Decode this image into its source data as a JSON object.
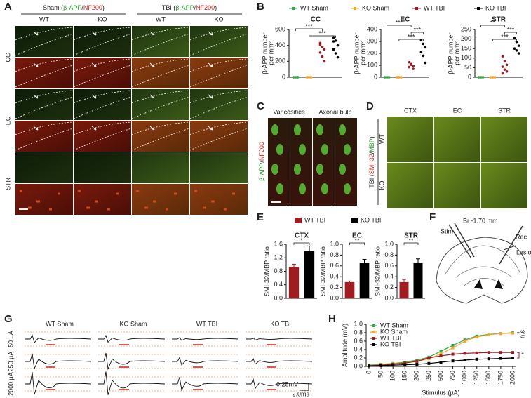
{
  "panel_labels": [
    "A",
    "B",
    "C",
    "D",
    "E",
    "F",
    "G",
    "H"
  ],
  "panel_a": {
    "groups": [
      {
        "parts": [
          "Sham (",
          "β-APP",
          "/",
          "NF200",
          ")"
        ]
      },
      {
        "parts": [
          "TBI (",
          "β-APP",
          "/",
          "NF200",
          ")"
        ]
      }
    ],
    "columns": [
      "WT",
      "KO",
      "WT",
      "KO"
    ],
    "rows": [
      "CC",
      "EC",
      "STR"
    ]
  },
  "panel_c": {
    "columns": [
      "Varicosities",
      "Axonal bulb"
    ],
    "stain_parts": [
      "β-APP",
      "/",
      "NF200"
    ]
  },
  "panel_d": {
    "columns": [
      "CTX",
      "EC",
      "STR"
    ],
    "rows": [
      "WT",
      "KO"
    ],
    "group_parts": [
      "TBI (",
      "SMI-32",
      "/",
      "MBP",
      ")"
    ]
  },
  "panel_f": {
    "labels": [
      "Stim",
      "Br -1.70 mm",
      "Rec",
      "Lesion"
    ]
  },
  "panel_g": {
    "columns": [
      "WT Sham",
      "KO Sham",
      "WT TBI",
      "KO TBI"
    ],
    "rows": [
      "50 µA",
      "250 µA",
      "2000 µA"
    ],
    "scale": [
      "0.25mV",
      "2.0ms"
    ]
  },
  "chart_data": [
    {
      "type": "strip",
      "title": "CC",
      "y_label": [
        "β-APP number",
        "per mm²"
      ],
      "ylim": [
        0,
        600
      ],
      "yticks": [
        0,
        200,
        400,
        600
      ],
      "series": [
        {
          "name": "WT Sham",
          "color": "#3aa64a",
          "values": [
            0,
            0,
            0,
            0,
            0,
            0
          ]
        },
        {
          "name": "KO Sham",
          "color": "#f0a830",
          "values": [
            0,
            0,
            0,
            0,
            0,
            0
          ]
        },
        {
          "name": "WT TBI",
          "color": "#a01c20",
          "values": [
            410,
            380,
            350,
            310,
            260,
            200,
            430
          ]
        },
        {
          "name": "KO TBI",
          "color": "#000000",
          "values": [
            500,
            460,
            400,
            350,
            300,
            250,
            450
          ]
        }
      ],
      "annotations": [
        "***",
        "***"
      ]
    },
    {
      "type": "strip",
      "title": "EC",
      "y_label": [
        "β-APP number",
        "per mm²"
      ],
      "ylim": [
        0,
        400
      ],
      "yticks": [
        0,
        100,
        200,
        300,
        400
      ],
      "series": [
        {
          "color": "#3aa64a",
          "values": [
            0,
            0,
            0,
            0,
            0,
            0
          ]
        },
        {
          "color": "#f0a830",
          "values": [
            0,
            0,
            0,
            0,
            0,
            0
          ]
        },
        {
          "color": "#a01c20",
          "values": [
            125,
            105,
            95,
            85,
            110,
            70
          ]
        },
        {
          "color": "#000000",
          "values": [
            310,
            280,
            250,
            210,
            180,
            120
          ]
        }
      ],
      "annotations": [
        "***",
        "***",
        "***"
      ]
    },
    {
      "type": "strip",
      "title": "STR",
      "y_label": [
        "β-APP number",
        "per mm²"
      ],
      "ylim": [
        0,
        250
      ],
      "yticks": [
        0,
        50,
        100,
        150,
        200,
        250
      ],
      "series": [
        {
          "color": "#3aa64a",
          "values": [
            0,
            0,
            0,
            0,
            0,
            0
          ]
        },
        {
          "color": "#f0a830",
          "values": [
            0,
            0,
            0,
            0,
            0,
            0
          ]
        },
        {
          "color": "#a01c20",
          "values": [
            110,
            85,
            65,
            55,
            40,
            30,
            20
          ]
        },
        {
          "color": "#000000",
          "values": [
            205,
            185,
            165,
            150,
            140,
            125
          ]
        }
      ],
      "annotations": [
        "**",
        "***",
        "***"
      ]
    },
    {
      "type": "bar",
      "title": "CTX",
      "y_label": "SMI-32/MBP ratio",
      "ylim": [
        0,
        1.6
      ],
      "yticks": [
        {
          "value": 0,
          "label": "0.0"
        },
        0.4,
        0.8,
        1.2,
        1.6
      ],
      "series": [
        {
          "name": "WT TBI",
          "color": "#a01c20",
          "values": [
            0.93
          ],
          "errors": [
            0.08
          ]
        },
        {
          "name": "KO TBI",
          "color": "#000000",
          "values": [
            1.4
          ],
          "errors": [
            0.15
          ]
        }
      ],
      "annotations": [
        "*"
      ]
    },
    {
      "type": "bar",
      "title": "EC",
      "y_label": "SMI-32/MBP ratio",
      "ylim": [
        0,
        1.0
      ],
      "yticks": [
        {
          "value": 0,
          "label": "0.0"
        },
        0.2,
        0.4,
        0.6,
        0.8,
        {
          "value": 1.0,
          "label": "1.0"
        }
      ],
      "series": [
        {
          "color": "#a01c20",
          "values": [
            0.3
          ],
          "errors": [
            0.02
          ]
        },
        {
          "color": "#000000",
          "values": [
            0.65
          ],
          "errors": [
            0.07
          ]
        }
      ],
      "annotations": [
        "**"
      ]
    },
    {
      "type": "bar",
      "title": "STR",
      "y_label": "SMI-32/MBP ratio",
      "ylim": [
        0,
        1.0
      ],
      "yticks": [
        {
          "value": 0,
          "label": "0.0"
        },
        0.2,
        0.4,
        0.6,
        0.8,
        {
          "value": 1.0,
          "label": "1.0"
        }
      ],
      "series": [
        {
          "color": "#a01c20",
          "values": [
            0.3
          ],
          "errors": [
            0.05
          ]
        },
        {
          "color": "#000000",
          "values": [
            0.65
          ],
          "errors": [
            0.08
          ]
        }
      ],
      "annotations": [
        "**"
      ]
    },
    {
      "type": "line",
      "x_label": "Stimulus (µA)",
      "y_label": "Amplitude (mV)",
      "categories": [
        "0",
        "50",
        "100",
        "150",
        "200",
        "250",
        "500",
        "750",
        "1000",
        "1250",
        "1500",
        "1750",
        "2000"
      ],
      "ylim": [
        0,
        1.0
      ],
      "yticks": [
        {
          "value": 0,
          "label": "0.0"
        },
        0.2,
        0.4,
        0.6,
        0.8,
        {
          "value": 1.0,
          "label": "1.0"
        }
      ],
      "series": [
        {
          "name": "WT Sham",
          "color": "#3aa64a",
          "values": [
            0.03,
            0.05,
            0.07,
            0.1,
            0.15,
            0.22,
            0.36,
            0.5,
            0.63,
            0.72,
            0.76,
            0.78,
            0.8
          ]
        },
        {
          "name": "KO Sham",
          "color": "#f0a830",
          "values": [
            0.02,
            0.04,
            0.06,
            0.08,
            0.12,
            0.18,
            0.3,
            0.44,
            0.6,
            0.7,
            0.75,
            0.78,
            0.79
          ]
        },
        {
          "name": "WT TBI",
          "color": "#a01c20",
          "values": [
            0.02,
            0.03,
            0.05,
            0.08,
            0.12,
            0.2,
            0.25,
            0.29,
            0.31,
            0.32,
            0.33,
            0.33,
            0.33
          ]
        },
        {
          "name": "KO TBI",
          "color": "#000000",
          "values": [
            0.01,
            0.02,
            0.03,
            0.04,
            0.05,
            0.07,
            0.1,
            0.13,
            0.15,
            0.17,
            0.18,
            0.19,
            0.2
          ]
        }
      ],
      "annotations": [
        "n.s.",
        "*"
      ]
    }
  ]
}
